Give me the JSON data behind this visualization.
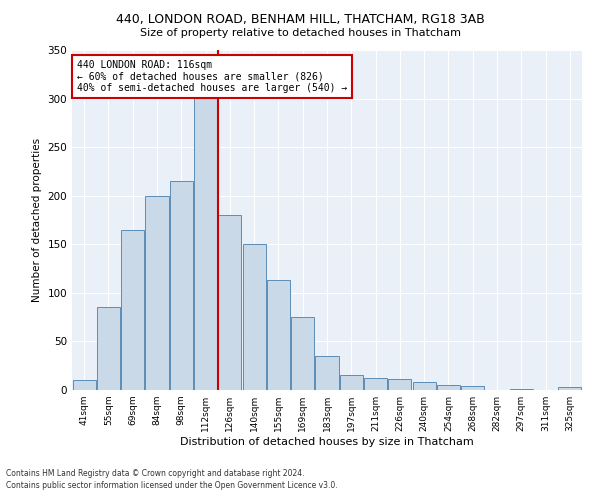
{
  "title1": "440, LONDON ROAD, BENHAM HILL, THATCHAM, RG18 3AB",
  "title2": "Size of property relative to detached houses in Thatcham",
  "xlabel": "Distribution of detached houses by size in Thatcham",
  "ylabel": "Number of detached properties",
  "categories": [
    "41sqm",
    "55sqm",
    "69sqm",
    "84sqm",
    "98sqm",
    "112sqm",
    "126sqm",
    "140sqm",
    "155sqm",
    "169sqm",
    "183sqm",
    "197sqm",
    "211sqm",
    "226sqm",
    "240sqm",
    "254sqm",
    "268sqm",
    "282sqm",
    "297sqm",
    "311sqm",
    "325sqm"
  ],
  "values": [
    10,
    85,
    165,
    200,
    215,
    330,
    180,
    150,
    113,
    75,
    35,
    15,
    12,
    11,
    8,
    5,
    4,
    0.5,
    1,
    0.5,
    3
  ],
  "bar_color": "#c9d9e8",
  "bar_edge_color": "#5b8db8",
  "vline_color": "#cc0000",
  "annotation_text": "440 LONDON ROAD: 116sqm\n← 60% of detached houses are smaller (826)\n40% of semi-detached houses are larger (540) →",
  "annotation_box_color": "#ffffff",
  "annotation_box_edge": "#cc0000",
  "ylim": [
    0,
    350
  ],
  "yticks": [
    0,
    50,
    100,
    150,
    200,
    250,
    300,
    350
  ],
  "background_color": "#eaf0f8",
  "footer1": "Contains HM Land Registry data © Crown copyright and database right 2024.",
  "footer2": "Contains public sector information licensed under the Open Government Licence v3.0."
}
